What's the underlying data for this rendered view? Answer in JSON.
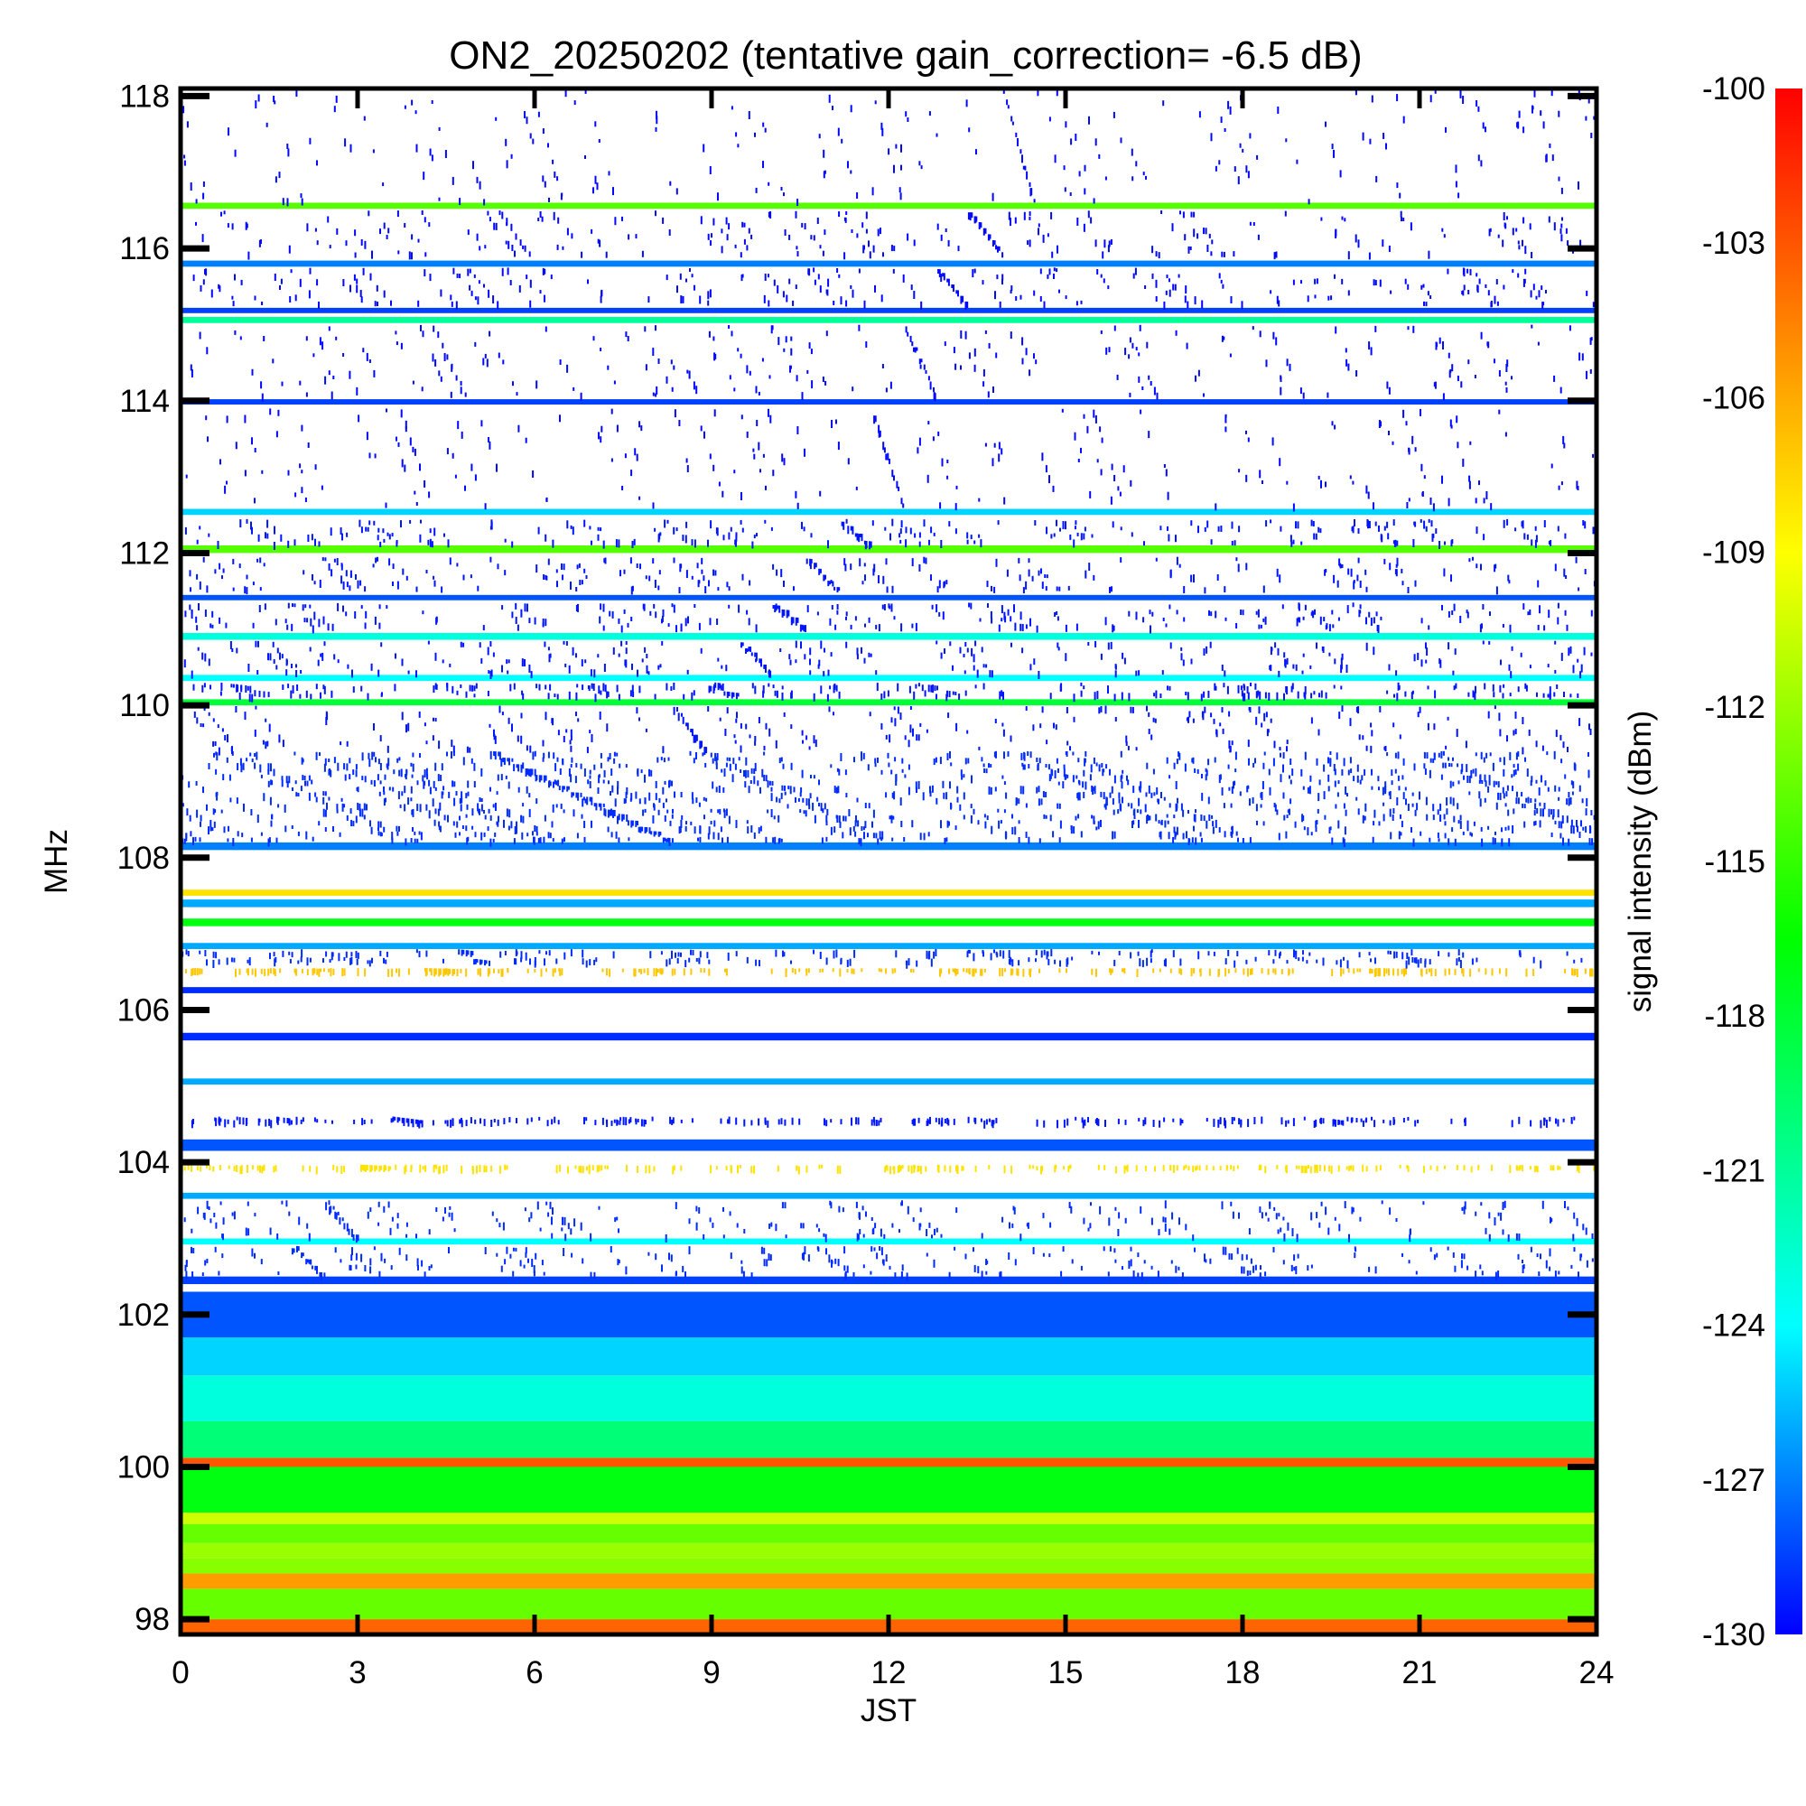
{
  "chart_data": {
    "type": "heatmap",
    "title": "ON2_20250202 (tentative gain_correction= -6.5 dB)",
    "xlabel": "JST",
    "ylabel": "MHz",
    "colorbar_label": "signal intensity (dBm)",
    "xlim": [
      0,
      24
    ],
    "ylim": [
      97.8,
      118.1
    ],
    "x_ticks": [
      0,
      3,
      6,
      9,
      12,
      15,
      18,
      21,
      24
    ],
    "x_tick_labels": [
      "0",
      "3",
      "6",
      "9",
      "12",
      "15",
      "18",
      "21",
      "24"
    ],
    "y_ticks": [
      98,
      100,
      102,
      104,
      106,
      108,
      110,
      112,
      114,
      116,
      118
    ],
    "y_tick_labels": [
      "98",
      "100",
      "102",
      "104",
      "106",
      "108",
      "110",
      "112",
      "114",
      "116",
      "118"
    ],
    "colorbar_range": [
      -130,
      -100
    ],
    "colorbar_ticks": [
      -100,
      -103,
      -106,
      -109,
      -112,
      -115,
      -118,
      -121,
      -124,
      -127,
      -130
    ],
    "colorbar_tick_labels": [
      "-100",
      "-103",
      "-106",
      "-109",
      "-112",
      "-115",
      "-118",
      "-121",
      "-124",
      "-127",
      "-130"
    ],
    "colormap": [
      "#0000ff",
      "#00ffff",
      "#00ff00",
      "#ffff00",
      "#ff8000",
      "#ff0000"
    ],
    "grid": false,
    "bands": [
      {
        "f_low": 97.8,
        "f_high": 98.0,
        "dbm": -103.5,
        "pattern": "solid"
      },
      {
        "f_low": 98.0,
        "f_high": 98.4,
        "dbm": -113.5,
        "pattern": "solid"
      },
      {
        "f_low": 98.4,
        "f_high": 98.6,
        "dbm": -105.5,
        "pattern": "solid"
      },
      {
        "f_low": 98.6,
        "f_high": 98.8,
        "dbm": -112.5,
        "pattern": "solid"
      },
      {
        "f_low": 98.8,
        "f_high": 99.0,
        "dbm": -112.0,
        "pattern": "solid"
      },
      {
        "f_low": 99.0,
        "f_high": 99.25,
        "dbm": -113.5,
        "pattern": "solid"
      },
      {
        "f_low": 99.25,
        "f_high": 99.4,
        "dbm": -110.5,
        "pattern": "solid"
      },
      {
        "f_low": 99.4,
        "f_high": 100.0,
        "dbm": -117.0,
        "pattern": "solid"
      },
      {
        "f_low": 100.0,
        "f_high": 100.12,
        "dbm": -103.0,
        "pattern": "solid"
      },
      {
        "f_low": 100.12,
        "f_high": 100.6,
        "dbm": -120.0,
        "pattern": "solid"
      },
      {
        "f_low": 100.6,
        "f_high": 101.2,
        "dbm": -123.0,
        "pattern": "solid"
      },
      {
        "f_low": 101.2,
        "f_high": 101.7,
        "dbm": -125.0,
        "pattern": "solid"
      },
      {
        "f_low": 101.7,
        "f_high": 102.3,
        "dbm": -128.0,
        "pattern": "solid"
      },
      {
        "f_low": 102.4,
        "f_high": 102.5,
        "dbm": -128.5,
        "pattern": "solid"
      },
      {
        "f_low": 102.5,
        "f_high": 102.9,
        "dbm": -129.0,
        "pattern": "sparse"
      },
      {
        "f_low": 102.92,
        "f_high": 103.0,
        "dbm": -124.0,
        "pattern": "solid"
      },
      {
        "f_low": 103.0,
        "f_high": 103.5,
        "dbm": -129.0,
        "pattern": "sparse"
      },
      {
        "f_low": 103.52,
        "f_high": 103.6,
        "dbm": -126.0,
        "pattern": "solid"
      },
      {
        "f_low": 103.9,
        "f_high": 103.97,
        "dbm": -108.0,
        "pattern": "sparse"
      },
      {
        "f_low": 104.15,
        "f_high": 104.3,
        "dbm": -128.0,
        "pattern": "solid"
      },
      {
        "f_low": 104.5,
        "f_high": 104.6,
        "dbm": -129.5,
        "pattern": "sparse"
      },
      {
        "f_low": 105.02,
        "f_high": 105.1,
        "dbm": -126.0,
        "pattern": "solid"
      },
      {
        "f_low": 105.6,
        "f_high": 105.7,
        "dbm": -129.0,
        "pattern": "solid"
      },
      {
        "f_low": 106.22,
        "f_high": 106.3,
        "dbm": -129.0,
        "pattern": "solid"
      },
      {
        "f_low": 106.5,
        "f_high": 106.55,
        "dbm": -107.0,
        "pattern": "sparse"
      },
      {
        "f_low": 106.6,
        "f_high": 106.8,
        "dbm": -129.0,
        "pattern": "sparse"
      },
      {
        "f_low": 106.8,
        "f_high": 106.88,
        "dbm": -126.0,
        "pattern": "solid"
      },
      {
        "f_low": 107.1,
        "f_high": 107.2,
        "dbm": -117.0,
        "pattern": "solid"
      },
      {
        "f_low": 107.35,
        "f_high": 107.45,
        "dbm": -126.0,
        "pattern": "solid"
      },
      {
        "f_low": 107.5,
        "f_high": 107.58,
        "dbm": -108.0,
        "pattern": "solid"
      },
      {
        "f_low": 108.1,
        "f_high": 108.2,
        "dbm": -127.0,
        "pattern": "solid"
      },
      {
        "f_low": 108.2,
        "f_high": 109.4,
        "dbm": -129.0,
        "pattern": "dense"
      },
      {
        "f_low": 109.4,
        "f_high": 110.0,
        "dbm": -129.5,
        "pattern": "sparse"
      },
      {
        "f_low": 110.0,
        "f_high": 110.08,
        "dbm": -118.0,
        "pattern": "solid"
      },
      {
        "f_low": 110.1,
        "f_high": 110.3,
        "dbm": -129.5,
        "pattern": "sparse"
      },
      {
        "f_low": 110.32,
        "f_high": 110.4,
        "dbm": -124.0,
        "pattern": "solid"
      },
      {
        "f_low": 110.4,
        "f_high": 110.85,
        "dbm": -129.5,
        "pattern": "sparse"
      },
      {
        "f_low": 110.86,
        "f_high": 110.95,
        "dbm": -123.0,
        "pattern": "solid"
      },
      {
        "f_low": 111.0,
        "f_high": 111.35,
        "dbm": -129.5,
        "pattern": "sparse"
      },
      {
        "f_low": 111.38,
        "f_high": 111.45,
        "dbm": -128.0,
        "pattern": "solid"
      },
      {
        "f_low": 111.5,
        "f_high": 111.95,
        "dbm": -129.5,
        "pattern": "sparse"
      },
      {
        "f_low": 112.0,
        "f_high": 112.1,
        "dbm": -114.0,
        "pattern": "solid"
      },
      {
        "f_low": 112.1,
        "f_high": 112.45,
        "dbm": -129.5,
        "pattern": "sparse"
      },
      {
        "f_low": 112.5,
        "f_high": 112.58,
        "dbm": -125.0,
        "pattern": "solid"
      },
      {
        "f_low": 112.6,
        "f_high": 113.9,
        "dbm": -129.8,
        "pattern": "sparse"
      },
      {
        "f_low": 113.95,
        "f_high": 114.02,
        "dbm": -128.5,
        "pattern": "solid"
      },
      {
        "f_low": 114.05,
        "f_high": 115.0,
        "dbm": -129.8,
        "pattern": "sparse"
      },
      {
        "f_low": 115.02,
        "f_high": 115.1,
        "dbm": -121.0,
        "pattern": "solid"
      },
      {
        "f_low": 115.15,
        "f_high": 115.22,
        "dbm": -128.5,
        "pattern": "solid"
      },
      {
        "f_low": 115.25,
        "f_high": 115.75,
        "dbm": -129.8,
        "pattern": "sparse"
      },
      {
        "f_low": 115.76,
        "f_high": 115.84,
        "dbm": -127.0,
        "pattern": "solid"
      },
      {
        "f_low": 115.9,
        "f_high": 116.5,
        "dbm": -129.8,
        "pattern": "sparse"
      },
      {
        "f_low": 116.52,
        "f_high": 116.6,
        "dbm": -114.0,
        "pattern": "solid"
      },
      {
        "f_low": 116.6,
        "f_high": 118.1,
        "dbm": -129.8,
        "pattern": "sparse"
      }
    ]
  }
}
